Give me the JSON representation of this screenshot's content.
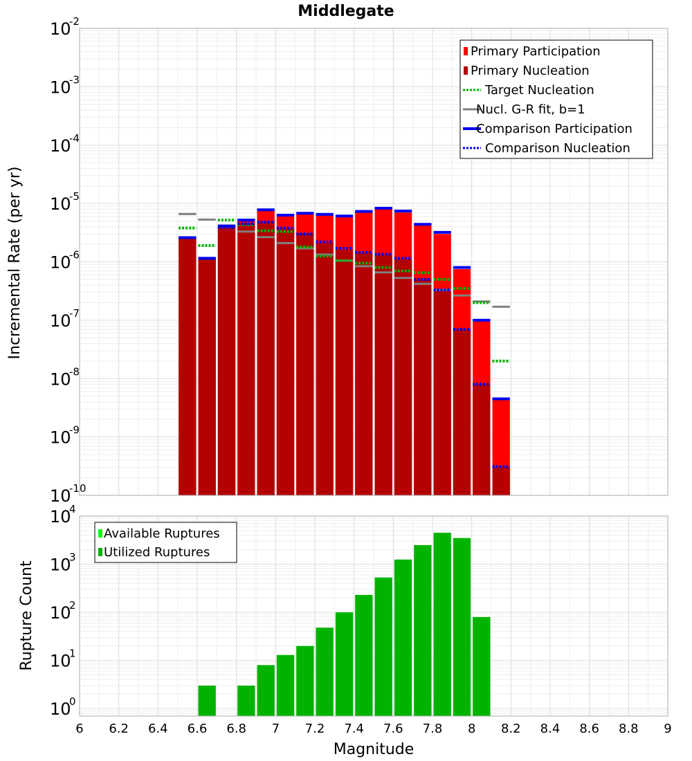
{
  "chart_data": [
    {
      "type": "bar",
      "title": "Middlegate",
      "xlabel": "",
      "ylabel": "Incremental Rate (per yr)",
      "xlim": [
        6,
        9
      ],
      "ylim": [
        1e-10,
        0.01
      ],
      "yscale": "log",
      "grid": true,
      "legend_position": "top-right",
      "ytick_exponents": [
        "-2",
        "-3",
        "-4",
        "-5",
        "-6",
        "-7",
        "-8",
        "-9",
        "-10"
      ],
      "legend": [
        {
          "label": "Primary Participation",
          "style": "bar",
          "color": "#ff0000"
        },
        {
          "label": "Primary Nucleation",
          "style": "bar",
          "color": "#b30000"
        },
        {
          "label": "Target Nucleation",
          "style": "dotted",
          "color": "#00b300"
        },
        {
          "label": "Nucl. G-R fit, b=1",
          "style": "solid",
          "color": "#808080"
        },
        {
          "label": "Comparison Participation",
          "style": "solid-thick",
          "color": "#0000ee"
        },
        {
          "label": "Comparison Nucleation",
          "style": "dotted",
          "color": "#0000ee"
        }
      ],
      "x": [
        6.55,
        6.65,
        6.75,
        6.85,
        6.95,
        7.05,
        7.15,
        7.25,
        7.35,
        7.45,
        7.55,
        7.65,
        7.75,
        7.85,
        7.95,
        8.05,
        8.15
      ],
      "series": [
        {
          "name": "Primary Participation",
          "values": [
            2.5e-06,
            1.1e-06,
            4e-06,
            5e-06,
            7.5e-06,
            6e-06,
            6.5e-06,
            6.2e-06,
            5.8e-06,
            7e-06,
            8e-06,
            7e-06,
            4.2e-06,
            3e-06,
            7.5e-07,
            9.5e-08,
            4.3e-09
          ]
        },
        {
          "name": "Primary Nucleation",
          "values": [
            2.5e-06,
            1.1e-06,
            3.9e-06,
            4.6e-06,
            4.8e-06,
            3.7e-06,
            3.1e-06,
            2.1e-06,
            1.6e-06,
            1.4e-06,
            1.3e-06,
            1.1e-06,
            5e-07,
            3.2e-07,
            7e-08,
            8e-09,
            3e-10
          ]
        },
        {
          "name": "Target Nucleation",
          "values": [
            3.8e-06,
            1.9e-06,
            5.2e-06,
            4.3e-06,
            3.4e-06,
            3.3e-06,
            1.8e-06,
            1.25e-06,
            1.05e-06,
            9.5e-07,
            8e-07,
            7e-07,
            6.5e-07,
            5e-07,
            3.5e-07,
            2e-07,
            2e-08
          ]
        },
        {
          "name": "Nucl. G-R fit, b=1",
          "values": [
            6.6e-06,
            5.3e-06,
            4.2e-06,
            3.3e-06,
            2.65e-06,
            2.1e-06,
            1.7e-06,
            1.33e-06,
            1.05e-06,
            8.4e-07,
            6.6e-07,
            5.3e-07,
            4.2e-07,
            3.3e-07,
            2.65e-07,
            2.1e-07,
            1.7e-07
          ]
        },
        {
          "name": "Comparison Participation",
          "values": [
            2.6e-06,
            1.15e-06,
            4.1e-06,
            5.2e-06,
            7.8e-06,
            6.3e-06,
            6.8e-06,
            6.5e-06,
            6.1e-06,
            7.3e-06,
            8.3e-06,
            7.4e-06,
            4.4e-06,
            3.2e-06,
            8e-07,
            1e-07,
            4.5e-09
          ]
        },
        {
          "name": "Comparison Nucleation",
          "values": [
            2.6e-06,
            1.15e-06,
            3.9e-06,
            4.5e-06,
            4.8e-06,
            3.8e-06,
            3e-06,
            2.2e-06,
            1.7e-06,
            1.45e-06,
            1.35e-06,
            1.15e-06,
            5e-07,
            3.3e-07,
            7e-08,
            8e-09,
            3.1e-10
          ]
        }
      ]
    },
    {
      "type": "bar",
      "xlabel": "Magnitude",
      "ylabel": "Rupture Count",
      "xlim": [
        6,
        9
      ],
      "ylim": [
        0.7,
        10000
      ],
      "yscale": "log",
      "grid": true,
      "legend_position": "top-left",
      "xticks": [
        "6",
        "6.2",
        "6.4",
        "6.6",
        "6.8",
        "7",
        "7.2",
        "7.4",
        "7.6",
        "7.8",
        "8",
        "8.2",
        "8.4",
        "8.6",
        "8.8",
        "9"
      ],
      "ytick_exponents": [
        "4",
        "3",
        "2",
        "1",
        "0"
      ],
      "legend": [
        {
          "label": "Available Ruptures",
          "color": "#00ff00"
        },
        {
          "label": "Utilized Ruptures",
          "color": "#00b300"
        }
      ],
      "x": [
        6.65,
        6.85,
        6.95,
        7.05,
        7.15,
        7.25,
        7.35,
        7.45,
        7.55,
        7.65,
        7.75,
        7.85,
        7.95,
        8.05
      ],
      "series": [
        {
          "name": "Utilized Ruptures",
          "values": [
            3,
            3,
            8,
            13,
            20,
            48,
            100,
            230,
            530,
            1250,
            2500,
            4500,
            3500,
            80
          ]
        }
      ]
    }
  ]
}
